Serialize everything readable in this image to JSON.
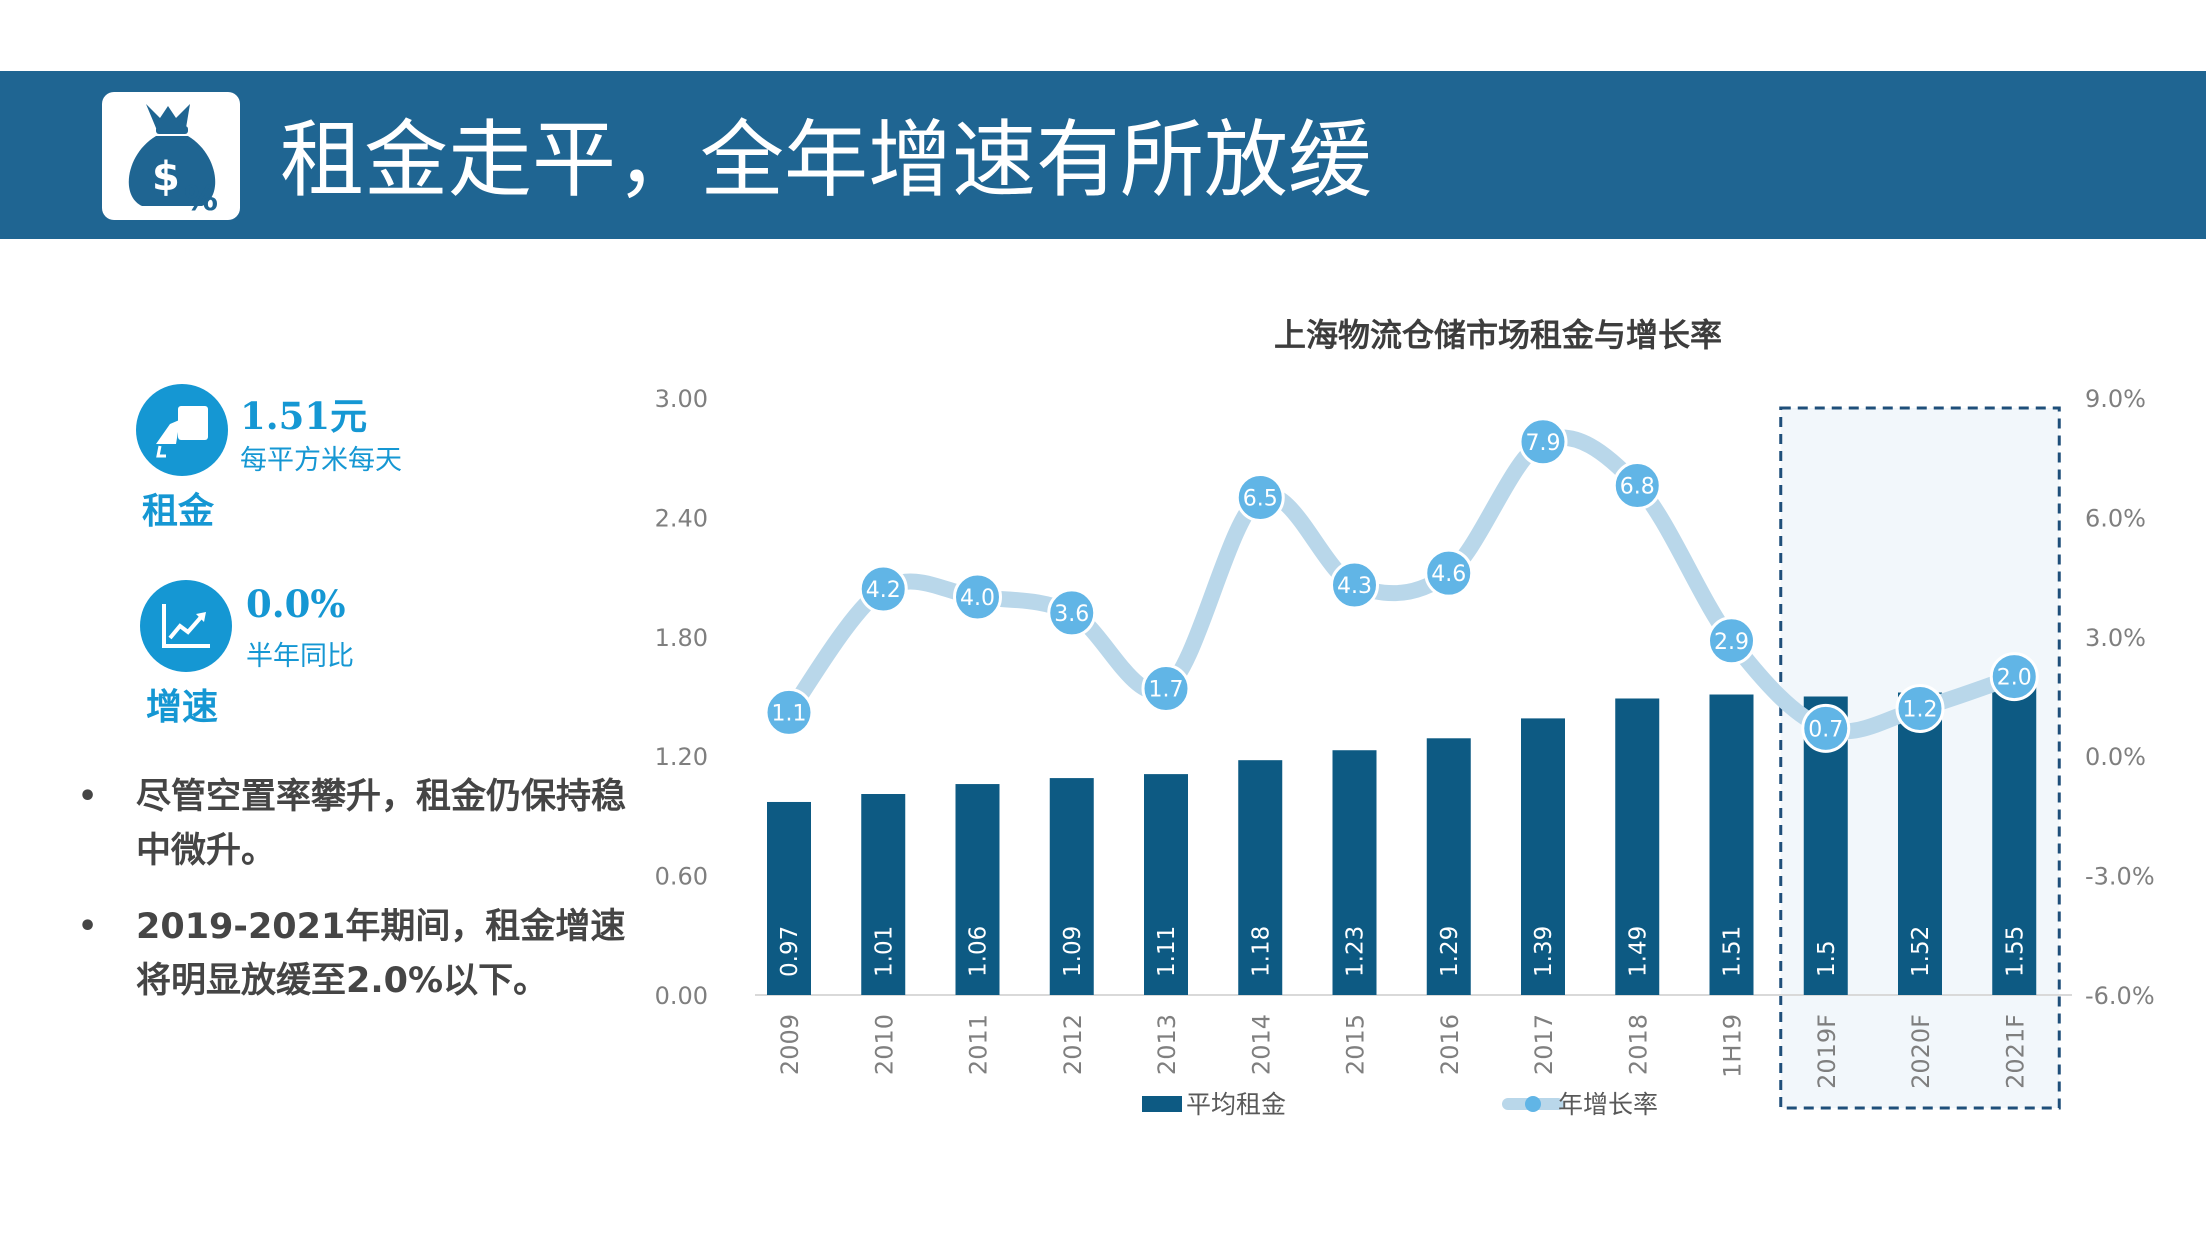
{
  "header": {
    "title": "租金走平，全年增速有所放缓",
    "icon": "money-bag-percent-icon",
    "background": "#1f6592"
  },
  "kpis": [
    {
      "value": "1.51元",
      "unit": "每平方米每天",
      "name": "租金",
      "icon": "hand-card-icon"
    },
    {
      "value": "0.0%",
      "unit": "半年同比",
      "name": "增速",
      "icon": "trend-up-chart-icon"
    }
  ],
  "bullets": [
    "尽管空置率攀升，租金仍保持稳中微升。",
    "2019-2021年期间，租金增速将明显放缓至2.0%以下。"
  ],
  "chart_data": {
    "type": "bar",
    "title": "上海物流仓储市场租金与增长率",
    "categories": [
      "2009",
      "2010",
      "2011",
      "2012",
      "2013",
      "2014",
      "2015",
      "2016",
      "2017",
      "2018",
      "1H19",
      "2019F",
      "2020F",
      "2021F"
    ],
    "series": [
      {
        "name": "平均租金",
        "type": "bar",
        "axis": "left",
        "color": "#0d5a83",
        "values": [
          0.97,
          1.01,
          1.06,
          1.09,
          1.11,
          1.18,
          1.23,
          1.29,
          1.39,
          1.49,
          1.51,
          1.5,
          1.52,
          1.55
        ],
        "labels": [
          "0.97",
          "1.01",
          "1.06",
          "1.09",
          "1.11",
          "1.18",
          "1.23",
          "1.29",
          "1.39",
          "1.49",
          "1.51",
          "1.5",
          "1.52",
          "1.55"
        ]
      },
      {
        "name": "年增长率",
        "type": "line",
        "axis": "right",
        "color": "#b9d7ea",
        "marker_color": "#61b5e6",
        "values": [
          1.1,
          4.2,
          4.0,
          3.6,
          1.7,
          6.5,
          4.3,
          4.6,
          7.9,
          6.8,
          2.9,
          0.7,
          1.2,
          2.0
        ],
        "labels": [
          "1.1",
          "4.2",
          "4.0",
          "3.6",
          "1.7",
          "6.5",
          "4.3",
          "4.6",
          "7.9",
          "6.8",
          "2.9",
          "0.7",
          "1.2",
          "2.0"
        ]
      }
    ],
    "y_left": {
      "min": 0,
      "max": 3,
      "ticks": [
        "0.00",
        "0.60",
        "1.20",
        "1.80",
        "2.40",
        "3.00"
      ]
    },
    "y_right": {
      "min": -6,
      "max": 9,
      "ticks": [
        "-6.0%",
        "-3.0%",
        "0.0%",
        "3.0%",
        "6.0%",
        "9.0%"
      ]
    },
    "forecast_categories": [
      "2019F",
      "2020F",
      "2021F"
    ],
    "grid": false,
    "legend_position": "bottom"
  }
}
